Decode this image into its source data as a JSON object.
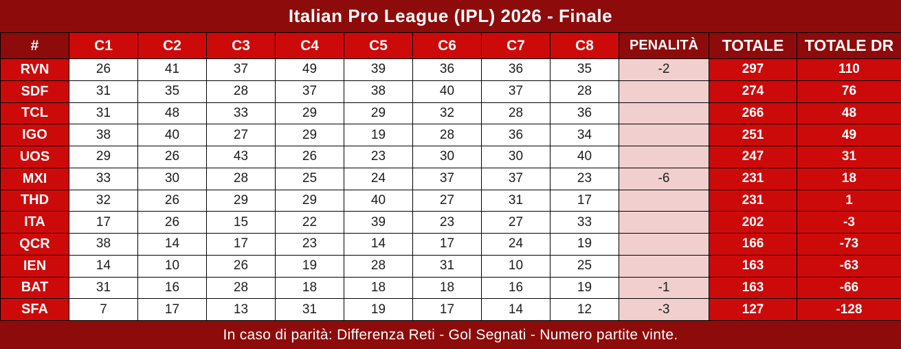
{
  "title": "Italian Pro League (IPL) 2026 - Finale",
  "footer_note": "In caso di parità: Differenza Reti - Gol Segnati - Numero partite vinte.",
  "colors": {
    "dark_red": "#8E0B0B",
    "bright_red": "#CD0A0A",
    "penalty_pink": "#F2CFCF",
    "border_black": "#000000",
    "text_white": "#FFFFFF",
    "text_dark": "#1B1B1B"
  },
  "table": {
    "headers": [
      "#",
      "C1",
      "C2",
      "C3",
      "C4",
      "C5",
      "C6",
      "C7",
      "C8",
      "PENALITÀ",
      "TOTALE",
      "TOTALE DR"
    ],
    "rows": [
      {
        "team": "RVN",
        "scores": [
          26,
          41,
          37,
          49,
          39,
          36,
          36,
          35
        ],
        "penalty": "-2",
        "total": 297,
        "dr": 110
      },
      {
        "team": "SDF",
        "scores": [
          31,
          35,
          28,
          37,
          38,
          40,
          37,
          28
        ],
        "penalty": "",
        "total": 274,
        "dr": 76
      },
      {
        "team": "TCL",
        "scores": [
          31,
          48,
          33,
          29,
          29,
          32,
          28,
          36
        ],
        "penalty": "",
        "total": 266,
        "dr": 48
      },
      {
        "team": "IGO",
        "scores": [
          38,
          40,
          27,
          29,
          19,
          28,
          36,
          34
        ],
        "penalty": "",
        "total": 251,
        "dr": 49
      },
      {
        "team": "UOS",
        "scores": [
          29,
          26,
          43,
          26,
          23,
          30,
          30,
          40
        ],
        "penalty": "",
        "total": 247,
        "dr": 31
      },
      {
        "team": "MXI",
        "scores": [
          33,
          30,
          28,
          25,
          24,
          37,
          37,
          23
        ],
        "penalty": "-6",
        "total": 231,
        "dr": 18
      },
      {
        "team": "THD",
        "scores": [
          32,
          26,
          29,
          29,
          40,
          27,
          31,
          17
        ],
        "penalty": "",
        "total": 231,
        "dr": 1
      },
      {
        "team": "ITA",
        "scores": [
          17,
          26,
          15,
          22,
          39,
          23,
          27,
          33
        ],
        "penalty": "",
        "total": 202,
        "dr": -3
      },
      {
        "team": "QCR",
        "scores": [
          38,
          14,
          17,
          23,
          14,
          17,
          24,
          19
        ],
        "penalty": "",
        "total": 166,
        "dr": -73
      },
      {
        "team": "IEN",
        "scores": [
          14,
          10,
          26,
          19,
          28,
          31,
          10,
          25
        ],
        "penalty": "",
        "total": 163,
        "dr": -63
      },
      {
        "team": "BAT",
        "scores": [
          31,
          16,
          28,
          18,
          18,
          18,
          16,
          19
        ],
        "penalty": "-1",
        "total": 163,
        "dr": -66
      },
      {
        "team": "SFA",
        "scores": [
          7,
          17,
          13,
          31,
          19,
          17,
          14,
          12
        ],
        "penalty": "-3",
        "total": 127,
        "dr": -128
      }
    ]
  }
}
